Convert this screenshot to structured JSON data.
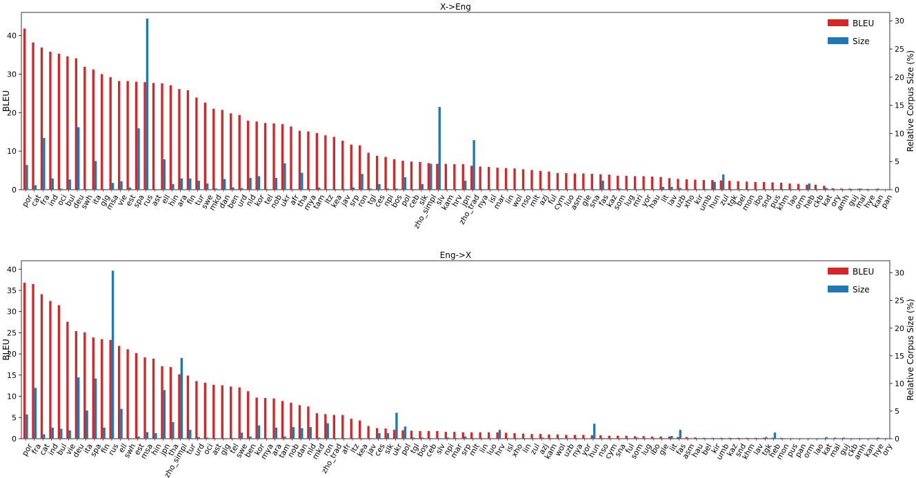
{
  "figure": {
    "colors": {
      "bleu": "#d62728",
      "size": "#1f77b4"
    }
  },
  "chart_data": [
    {
      "type": "bar",
      "title": "X->Eng",
      "ylabel": "BLEU",
      "y2label": "Relative Corpus Size (%)",
      "ylim": [
        0,
        46
      ],
      "y2lim": [
        0,
        31.5
      ],
      "yticks": [
        0,
        10,
        20,
        30,
        40
      ],
      "y2ticks": [
        0,
        5,
        10,
        15,
        20,
        25,
        30
      ],
      "legend": {
        "position": "top-right",
        "entries": [
          "BLEU",
          "Size"
        ]
      },
      "categories": [
        "por",
        "cat",
        "fra",
        "ind",
        "oci",
        "bul",
        "deu",
        "swh",
        "ita",
        "glg",
        "msa",
        "vie",
        "est",
        "spa",
        "rus",
        "ast",
        "ell",
        "hin",
        "ara",
        "fin",
        "tur",
        "swe",
        "mkd",
        "dan",
        "ben",
        "urd",
        "nld",
        "kor",
        "tel",
        "nob",
        "ukr",
        "afr",
        "tha",
        "mya",
        "tam",
        "ltz",
        "kea",
        "jav",
        "srp",
        "ron",
        "tgl",
        "ces",
        "npi",
        "bos",
        "pol",
        "ceb",
        "slk",
        "zho_simpl",
        "slv",
        "kam",
        "hrv",
        "jpn",
        "zho_trad",
        "nya",
        "isl",
        "mar",
        "lin",
        "wol",
        "nso",
        "mlt",
        "azj",
        "ful",
        "cym",
        "luo",
        "asm",
        "gle",
        "sna",
        "fas",
        "kaz",
        "som",
        "lug",
        "mri",
        "yor",
        "hau",
        "lit",
        "lav",
        "uzb",
        "xho",
        "kir",
        "umb",
        "hun",
        "zul",
        "tgk",
        "bel",
        "mon",
        "ibo",
        "snd",
        "pus",
        "khm",
        "lao",
        "orm",
        "heb",
        "ckb",
        "kat",
        "ory",
        "amh",
        "guj",
        "mal",
        "hye",
        "kan",
        "pan"
      ],
      "series": [
        {
          "name": "BLEU",
          "values": [
            41.8,
            38.2,
            36.9,
            35.8,
            35.3,
            34.6,
            34.1,
            31.9,
            31.2,
            30.0,
            29.2,
            28.2,
            28.2,
            28.0,
            27.9,
            27.7,
            27.6,
            27.1,
            26.1,
            25.8,
            23.9,
            22.6,
            21.0,
            20.7,
            19.8,
            19.4,
            17.9,
            17.7,
            17.3,
            17.2,
            17.0,
            16.4,
            15.3,
            15.1,
            14.7,
            14.1,
            13.7,
            12.7,
            11.7,
            11.5,
            9.6,
            8.8,
            8.5,
            7.9,
            7.5,
            7.3,
            7.2,
            6.9,
            6.7,
            6.7,
            6.6,
            6.6,
            6.2,
            6.0,
            5.9,
            5.7,
            5.6,
            5.5,
            5.3,
            5.1,
            4.9,
            4.7,
            4.3,
            4.3,
            4.2,
            4.2,
            4.1,
            4.0,
            3.9,
            3.6,
            3.6,
            3.5,
            3.5,
            3.4,
            3.3,
            3.0,
            2.8,
            2.7,
            2.6,
            2.5,
            2.5,
            2.4,
            2.3,
            2.2,
            2.1,
            2.0,
            2.0,
            1.9,
            1.8,
            1.6,
            1.5,
            1.3,
            1.3,
            1.0,
            0.4,
            0.3,
            0.3,
            0.25,
            0.2,
            0.15,
            0.1
          ]
        },
        {
          "name": "Size",
          "values": [
            4.4,
            0.8,
            9.2,
            2.0,
            0.2,
            1.8,
            11.1,
            0.1,
            5.1,
            0.1,
            1.2,
            1.5,
            0.4,
            10.9,
            30.4,
            0.1,
            5.4,
            1.0,
            2.0,
            2.0,
            1.6,
            1.1,
            0.2,
            1.9,
            0.4,
            0.3,
            2.1,
            2.4,
            0.1,
            2.1,
            4.7,
            0.1,
            3.0,
            0.1,
            0.4,
            0.1,
            0.1,
            0.1,
            0.4,
            2.8,
            0.2,
            1.0,
            0.2,
            0.2,
            2.2,
            0.1,
            1.0,
            4.6,
            14.7,
            0.1,
            0.1,
            1.6,
            8.8,
            0.1,
            0.1,
            0.1,
            0.1,
            0.1,
            0.1,
            0.1,
            0.2,
            0.1,
            0.1,
            0.1,
            0.1,
            0.1,
            0.1,
            1.6,
            0.1,
            0.2,
            0.1,
            0.1,
            0.1,
            0.1,
            0.5,
            0.5,
            0.3,
            0.1,
            0.1,
            0.1,
            1.4,
            2.7,
            0.1,
            0.1,
            0.1,
            0.1,
            0.1,
            0.1,
            0.1,
            0.1,
            0.1,
            1.1,
            0.1,
            0.3,
            0.1,
            0.1,
            0.1,
            0.2,
            0.1,
            0.2,
            0.1
          ]
        }
      ]
    },
    {
      "type": "bar",
      "title": "Eng->X",
      "ylabel": "BLEU",
      "y2label": "Relative Corpus Size (%)",
      "ylim": [
        0,
        42
      ],
      "y2lim": [
        0,
        32.2
      ],
      "yticks": [
        0,
        5,
        10,
        15,
        20,
        25,
        30,
        35,
        40
      ],
      "y2ticks": [
        0,
        5,
        10,
        15,
        20,
        25,
        30
      ],
      "legend": {
        "position": "top-right",
        "entries": [
          "BLEU",
          "Size"
        ]
      },
      "categories": [
        "por",
        "fra",
        "cat",
        "ind",
        "bul",
        "vie",
        "deu",
        "ita",
        "spa",
        "fin",
        "rus",
        "ell",
        "swh",
        "est",
        "msa",
        "hin",
        "jpn",
        "tha",
        "zho_simpl",
        "tur",
        "urd",
        "oci",
        "ast",
        "glg",
        "tel",
        "swe",
        "ben",
        "kor",
        "mya",
        "ara",
        "tam",
        "nob",
        "dan",
        "nld",
        "mkd",
        "ron",
        "zho_trad",
        "afr",
        "ltz",
        "kea",
        "jav",
        "ces",
        "slk",
        "ukr",
        "pol",
        "tgl",
        "bos",
        "ceb",
        "slv",
        "npi",
        "mar",
        "srp",
        "mlt",
        "lin",
        "luo",
        "hrv",
        "isl",
        "xho",
        "lin",
        "zul",
        "azj",
        "kam",
        "wol",
        "uzb",
        "nya",
        "yor",
        "hun",
        "nso",
        "cym",
        "sna",
        "ful",
        "som",
        "lug",
        "ibo",
        "gle",
        "lit",
        "fas",
        "asm",
        "hau",
        "bel",
        "kir",
        "umb",
        "kaz",
        "snd",
        "khm",
        "lav",
        "tgk",
        "heb",
        "mon",
        "pus",
        "pan",
        "orm",
        "lao",
        "kat",
        "mal",
        "guj",
        "ckb",
        "amh",
        "kan",
        "hye",
        "ory"
      ],
      "series": [
        {
          "name": "BLEU",
          "values": [
            36.8,
            36.5,
            34.1,
            32.5,
            31.5,
            27.6,
            25.4,
            25.1,
            23.9,
            23.5,
            23.3,
            21.9,
            21.1,
            20.2,
            19.2,
            18.9,
            17.1,
            16.9,
            15.2,
            14.9,
            13.6,
            13.2,
            12.7,
            12.6,
            12.3,
            12.1,
            11.2,
            9.7,
            9.6,
            9.5,
            8.9,
            8.5,
            7.9,
            7.6,
            6.0,
            5.8,
            5.6,
            5.6,
            4.7,
            4.3,
            3.0,
            2.5,
            2.4,
            2.1,
            2.0,
            1.9,
            1.8,
            1.8,
            1.8,
            1.6,
            1.6,
            1.5,
            1.5,
            1.5,
            1.5,
            1.5,
            1.4,
            1.3,
            1.2,
            1.1,
            1.1,
            1.0,
            1.0,
            0.9,
            0.9,
            0.9,
            0.8,
            0.8,
            0.7,
            0.7,
            0.7,
            0.6,
            0.6,
            0.5,
            0.5,
            0.5,
            0.4,
            0.4,
            0.3,
            0.2,
            0.2,
            0.2,
            0.2,
            0.2,
            0.2,
            0.2,
            0.2,
            0.2,
            0.2,
            0.1,
            0.1,
            0.1,
            0.1,
            0.1,
            0.1,
            0.1,
            0.1,
            0.1,
            0.1,
            0.1,
            0.1
          ]
        },
        {
          "name": "Size",
          "values": [
            4.4,
            9.2,
            0.8,
            2.0,
            1.8,
            1.5,
            11.1,
            5.1,
            10.9,
            2.0,
            30.4,
            5.4,
            0.1,
            0.4,
            1.2,
            1.0,
            8.8,
            3.0,
            14.6,
            1.6,
            0.3,
            0.2,
            0.1,
            0.1,
            0.1,
            1.1,
            0.4,
            2.4,
            0.1,
            2.0,
            0.4,
            2.1,
            1.9,
            2.1,
            0.2,
            2.8,
            0.1,
            0.1,
            0.1,
            0.1,
            0.1,
            1.0,
            1.0,
            4.7,
            2.2,
            0.2,
            0.2,
            0.1,
            0.1,
            0.2,
            0.1,
            0.4,
            0.1,
            0.1,
            0.1,
            1.6,
            0.1,
            0.1,
            0.1,
            0.1,
            0.2,
            0.1,
            0.1,
            0.1,
            0.1,
            0.1,
            2.7,
            0.1,
            0.1,
            0.1,
            0.1,
            0.2,
            0.1,
            0.1,
            0.1,
            0.5,
            1.6,
            0.1,
            0.1,
            0.1,
            0.1,
            0.1,
            0.1,
            0.1,
            0.1,
            0.1,
            0.3,
            1.1,
            0.1,
            0.1,
            0.1,
            0.1,
            0.1,
            0.3,
            0.2,
            0.2,
            0.1,
            0.1,
            0.1,
            0.2,
            0.1
          ]
        }
      ]
    }
  ]
}
